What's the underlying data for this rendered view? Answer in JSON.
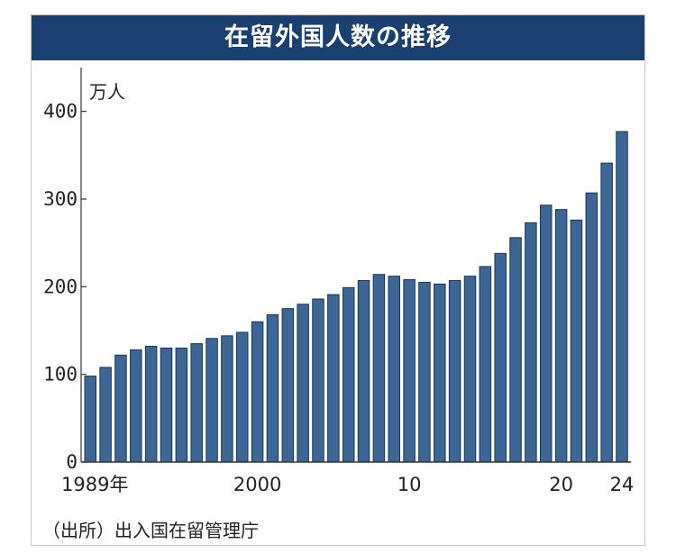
{
  "chart_data": {
    "type": "bar",
    "title": "在留外国人数の推移",
    "ylabel": "万人",
    "ylim": [
      0,
      450
    ],
    "yticks": [
      0,
      100,
      200,
      300,
      400
    ],
    "colors": {
      "bar": "#3c6696",
      "bar_edge": "#1b3459",
      "axis": "#333333",
      "title_bg": "#1c3f72"
    },
    "categories": [
      "1989",
      "1990",
      "1991",
      "1992",
      "1993",
      "1994",
      "1995",
      "1996",
      "1997",
      "1998",
      "1999",
      "2000",
      "2001",
      "2002",
      "2003",
      "2004",
      "2005",
      "2006",
      "2007",
      "2008",
      "2009",
      "2010",
      "2011",
      "2012",
      "2013",
      "2014",
      "2015",
      "2016",
      "2017",
      "2018",
      "2019",
      "2020",
      "2021",
      "2022",
      "2023",
      "2024"
    ],
    "values": [
      98,
      108,
      122,
      128,
      132,
      130,
      130,
      135,
      141,
      144,
      148,
      160,
      168,
      175,
      180,
      186,
      191,
      199,
      207,
      214,
      212,
      208,
      205,
      203,
      207,
      212,
      223,
      238,
      256,
      273,
      293,
      288,
      276,
      307,
      341,
      377
    ],
    "xtick_labels": [
      {
        "index": 0,
        "label": "1989年"
      },
      {
        "index": 11,
        "label": "2000"
      },
      {
        "index": 21,
        "label": "10"
      },
      {
        "index": 31,
        "label": "20"
      },
      {
        "index": 35,
        "label": "24"
      }
    ]
  },
  "source": "（出所）出入国在留管理庁"
}
